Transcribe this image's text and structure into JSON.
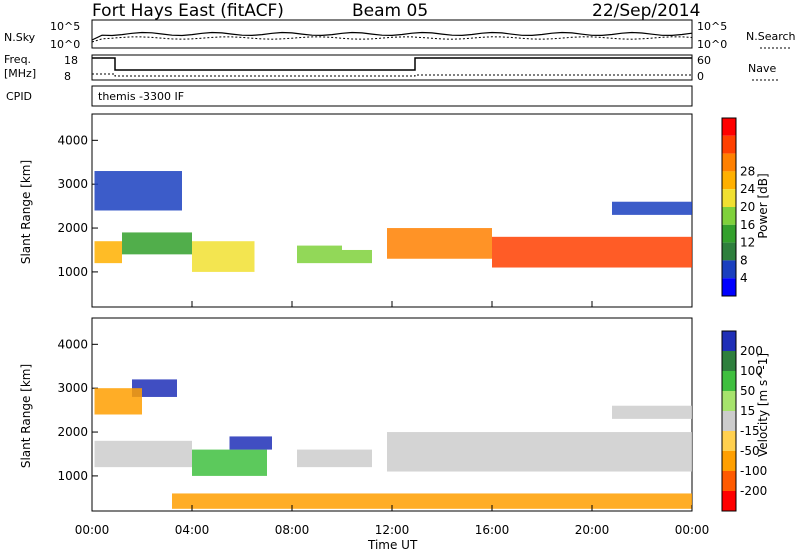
{
  "header": {
    "station": "Fort Hays East (fitACF)",
    "beam": "Beam 05",
    "date": "22/Sep/2014",
    "left_top_label": "N.Sky",
    "right_top_label": "N.Search",
    "left_mid_label_1": "Freq.",
    "left_mid_label_2": "[MHz]",
    "right_mid_label": "Nave",
    "cpid_label": "CPID",
    "cpid_value": "themis -3300 IF",
    "noise_tick_hi": "10^5",
    "noise_tick_lo": "10^0",
    "freq_tick_hi": "18",
    "freq_tick_lo": "8",
    "nave_tick_hi": "60",
    "nave_tick_lo": "0"
  },
  "chart_data": [
    {
      "type": "heatmap",
      "title": "",
      "xlabel": "Time UT",
      "ylabel": "Slant Range [km]",
      "x_ticks": [
        "00:00",
        "04:00",
        "08:00",
        "12:00",
        "16:00",
        "20:00",
        "00:00"
      ],
      "y_ticks": [
        "1000",
        "2000",
        "3000",
        "4000"
      ],
      "ylim": [
        200,
        4600
      ],
      "colorbar": {
        "label": "Power [dB]",
        "ticks": [
          "4",
          "8",
          "12",
          "16",
          "20",
          "24",
          "28"
        ],
        "colors": [
          "#0000ff",
          "#1a3fbf",
          "#2e7f3d",
          "#33a02c",
          "#7fd13b",
          "#f1e031",
          "#ffb000",
          "#ff8000",
          "#ff4000",
          "#ff0000"
        ]
      },
      "regions": [
        {
          "t": [
            0.1,
            1.2
          ],
          "r": [
            1200,
            1700
          ],
          "value": 22
        },
        {
          "t": [
            1.2,
            4.0
          ],
          "r": [
            1400,
            1900
          ],
          "value": 12
        },
        {
          "t": [
            4.0,
            6.5
          ],
          "r": [
            1000,
            1700
          ],
          "value": 18
        },
        {
          "t": [
            8.2,
            10.0
          ],
          "r": [
            1200,
            1600
          ],
          "value": 16
        },
        {
          "t": [
            10.0,
            11.2
          ],
          "r": [
            1200,
            1500
          ],
          "value": 14
        },
        {
          "t": [
            11.8,
            16.0
          ],
          "r": [
            1300,
            2000
          ],
          "value": 24
        },
        {
          "t": [
            16.0,
            24.0
          ],
          "r": [
            1100,
            1800
          ],
          "value": 26
        },
        {
          "t": [
            0.1,
            3.6
          ],
          "r": [
            2400,
            3300
          ],
          "value": 6
        },
        {
          "t": [
            20.8,
            24.0
          ],
          "r": [
            2300,
            2600
          ],
          "value": 6
        }
      ]
    },
    {
      "type": "heatmap",
      "title": "",
      "xlabel": "Time UT",
      "ylabel": "Slant Range [km]",
      "x_ticks": [
        "00:00",
        "04:00",
        "08:00",
        "12:00",
        "16:00",
        "20:00",
        "00:00"
      ],
      "y_ticks": [
        "1000",
        "2000",
        "3000",
        "4000"
      ],
      "ylim": [
        200,
        4600
      ],
      "colorbar": {
        "label": "Velocity [m s^-1]",
        "ticks": [
          "200",
          "100",
          "50",
          "15",
          "-15",
          "-50",
          "-100",
          "-200"
        ],
        "colors": [
          "#1f2fb7",
          "#2e7f3d",
          "#3fbf3f",
          "#a6e36c",
          "#cccccc",
          "#ffd04f",
          "#ff9f00",
          "#ff5a00",
          "#ff0000"
        ]
      },
      "regions": [
        {
          "t": [
            0.1,
            4.0
          ],
          "r": [
            1200,
            1800
          ],
          "value": 0
        },
        {
          "t": [
            4.0,
            7.0
          ],
          "r": [
            1000,
            1600
          ],
          "value": 60
        },
        {
          "t": [
            5.5,
            7.2
          ],
          "r": [
            1600,
            1900
          ],
          "value": 180
        },
        {
          "t": [
            8.2,
            11.2
          ],
          "r": [
            1200,
            1600
          ],
          "value": 0
        },
        {
          "t": [
            11.8,
            24.0
          ],
          "r": [
            1100,
            2000
          ],
          "value": 0
        },
        {
          "t": [
            1.6,
            3.4
          ],
          "r": [
            2800,
            3200
          ],
          "value": 180
        },
        {
          "t": [
            0.1,
            2.0
          ],
          "r": [
            2400,
            3000
          ],
          "value": -60
        },
        {
          "t": [
            20.8,
            24.0
          ],
          "r": [
            2300,
            2600
          ],
          "value": 0
        },
        {
          "t": [
            3.2,
            24.0
          ],
          "r": [
            250,
            600
          ],
          "value": -40
        }
      ]
    }
  ]
}
